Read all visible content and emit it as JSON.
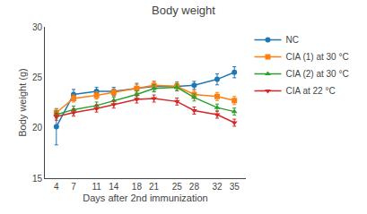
{
  "chart_data": {
    "type": "line",
    "title": "Body weight",
    "x_label": "Days after 2nd immunization",
    "y_label": "Body weight (g)",
    "x": [
      4,
      7,
      11,
      14,
      18,
      21,
      25,
      28,
      32,
      35
    ],
    "xlim": [
      2,
      37
    ],
    "xticks": [
      4,
      7,
      11,
      14,
      18,
      21,
      25,
      28,
      32,
      35
    ],
    "ylim": [
      15,
      30
    ],
    "yticks": [
      15,
      20,
      25,
      30
    ],
    "grid": false,
    "legend": "upper right",
    "series": [
      {
        "name": "NC",
        "marker": "circle",
        "values": [
          20.1,
          23.3,
          23.6,
          23.6,
          23.9,
          24.1,
          24.1,
          24.2,
          24.8,
          25.5
        ],
        "errors": [
          1.8,
          0.5,
          0.4,
          0.4,
          0.5,
          0.5,
          0.45,
          0.4,
          0.55,
          0.55
        ]
      },
      {
        "name": "CIA (1) at 30 °C",
        "marker": "square",
        "values": [
          21.5,
          22.9,
          23.2,
          23.5,
          23.9,
          24.2,
          24.1,
          23.3,
          23.1,
          22.7
        ],
        "errors": [
          0.35,
          0.35,
          0.35,
          0.35,
          0.4,
          0.4,
          0.4,
          0.4,
          0.4,
          0.4
        ]
      },
      {
        "name": "CIA (2) at 30 °C",
        "marker": "triangle-up",
        "values": [
          21.3,
          21.8,
          22.2,
          22.7,
          23.3,
          23.9,
          24.0,
          23.0,
          22.0,
          21.6
        ],
        "errors": [
          0.35,
          0.35,
          0.35,
          0.35,
          0.35,
          0.35,
          0.35,
          0.35,
          0.35,
          0.35
        ]
      },
      {
        "name": "CIA at 22 °C",
        "marker": "triangle-down",
        "values": [
          21.1,
          21.5,
          21.9,
          22.3,
          22.8,
          22.9,
          22.6,
          21.7,
          21.3,
          20.5
        ],
        "errors": [
          0.35,
          0.35,
          0.35,
          0.35,
          0.35,
          0.35,
          0.35,
          0.35,
          0.35,
          0.35
        ]
      }
    ]
  }
}
